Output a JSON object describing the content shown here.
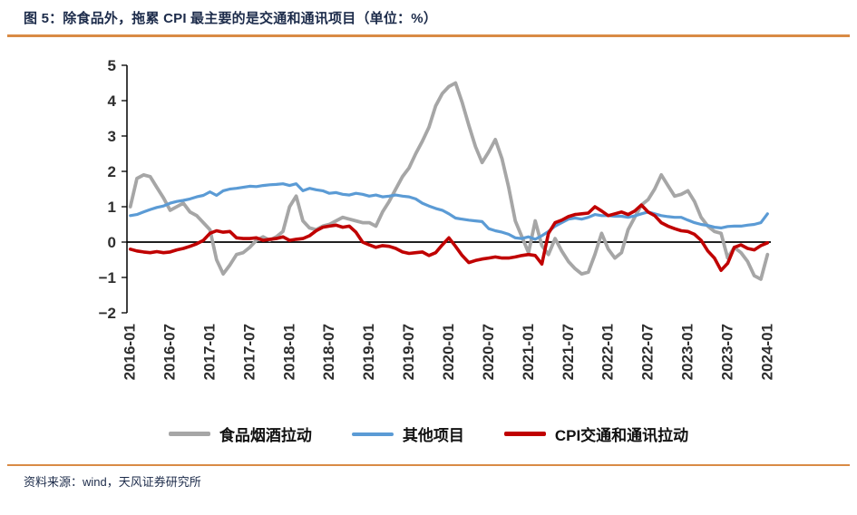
{
  "page": {
    "source": "资料来源：wind，天风证券研究所"
  },
  "colors": {
    "accent_rule": "#d98b45",
    "axis": "#000000",
    "tick_label": "#2e2e2e",
    "title_text": "#1c2b4a"
  },
  "chart_data": {
    "type": "line",
    "title": "图 5：除食品外，拖累 CPI 最主要的是交通和通讯项目（单位：%）",
    "unit": "%",
    "xlabel": "",
    "ylabel": "",
    "ylim": [
      -2,
      5
    ],
    "yticks": [
      5,
      4,
      3,
      2,
      1,
      0,
      -1,
      -2
    ],
    "grid": false,
    "legend_position": "bottom",
    "x_tick_rotation": -90,
    "x_monthly_start": "2016-01",
    "x_monthly_end": "2024-01",
    "x_tick_labels": [
      "2016-01",
      "2016-07",
      "2017-01",
      "2017-07",
      "2018-01",
      "2018-07",
      "2019-01",
      "2019-07",
      "2020-01",
      "2020-07",
      "2021-01",
      "2021-07",
      "2022-01",
      "2022-07",
      "2023-01",
      "2023-07",
      "2024-01"
    ],
    "x_tick_step_months": 6,
    "series": [
      {
        "name": "食品烟酒拉动",
        "color": "#a6a6a6",
        "values": [
          1.0,
          1.8,
          1.9,
          1.85,
          1.55,
          1.25,
          0.9,
          1.0,
          1.1,
          0.85,
          0.75,
          0.55,
          0.35,
          -0.5,
          -0.9,
          -0.65,
          -0.35,
          -0.3,
          -0.15,
          0.05,
          0.15,
          0.05,
          0.15,
          0.3,
          1.0,
          1.3,
          0.6,
          0.4,
          0.35,
          0.45,
          0.5,
          0.6,
          0.7,
          0.65,
          0.6,
          0.55,
          0.55,
          0.45,
          0.85,
          1.15,
          1.5,
          1.85,
          2.1,
          2.5,
          2.85,
          3.25,
          3.85,
          4.2,
          4.4,
          4.5,
          3.95,
          3.3,
          2.7,
          2.25,
          2.55,
          2.9,
          2.35,
          1.55,
          0.6,
          0.15,
          -0.3,
          0.6,
          -0.1,
          -0.35,
          0.1,
          -0.25,
          -0.55,
          -0.75,
          -0.9,
          -0.85,
          -0.35,
          0.25,
          -0.2,
          -0.45,
          -0.3,
          0.35,
          0.7,
          1.05,
          1.2,
          1.5,
          1.9,
          1.6,
          1.3,
          1.35,
          1.45,
          1.15,
          0.7,
          0.45,
          0.3,
          0.25,
          -0.45,
          -0.15,
          -0.3,
          -0.55,
          -0.95,
          -1.05,
          -0.35
        ]
      },
      {
        "name": "其他项目",
        "color": "#5b9bd5",
        "values": [
          0.75,
          0.78,
          0.85,
          0.92,
          0.98,
          1.02,
          1.1,
          1.15,
          1.18,
          1.22,
          1.28,
          1.32,
          1.42,
          1.32,
          1.45,
          1.5,
          1.52,
          1.55,
          1.58,
          1.57,
          1.6,
          1.62,
          1.63,
          1.65,
          1.6,
          1.65,
          1.45,
          1.52,
          1.48,
          1.45,
          1.38,
          1.4,
          1.35,
          1.33,
          1.38,
          1.35,
          1.3,
          1.33,
          1.28,
          1.3,
          1.33,
          1.3,
          1.28,
          1.22,
          1.1,
          1.02,
          0.95,
          0.9,
          0.8,
          0.68,
          0.65,
          0.62,
          0.6,
          0.58,
          0.38,
          0.32,
          0.28,
          0.22,
          0.12,
          0.1,
          0.15,
          0.08,
          0.18,
          0.3,
          0.45,
          0.55,
          0.65,
          0.68,
          0.65,
          0.7,
          0.78,
          0.75,
          0.75,
          0.73,
          0.73,
          0.7,
          0.74,
          0.8,
          0.85,
          0.8,
          0.75,
          0.72,
          0.7,
          0.7,
          0.62,
          0.55,
          0.5,
          0.47,
          0.42,
          0.4,
          0.44,
          0.45,
          0.45,
          0.48,
          0.5,
          0.55,
          0.8
        ]
      },
      {
        "name": "CPI交通和通讯拉动",
        "color": "#c00000",
        "values": [
          -0.2,
          -0.25,
          -0.28,
          -0.3,
          -0.27,
          -0.3,
          -0.28,
          -0.22,
          -0.18,
          -0.12,
          -0.05,
          0.05,
          0.25,
          0.32,
          0.28,
          0.3,
          0.12,
          0.1,
          0.1,
          0.12,
          0.05,
          0.08,
          0.1,
          0.15,
          0.05,
          0.08,
          0.1,
          0.18,
          0.32,
          0.42,
          0.45,
          0.48,
          0.42,
          0.45,
          0.28,
          0.0,
          -0.08,
          -0.15,
          -0.1,
          -0.12,
          -0.18,
          -0.28,
          -0.32,
          -0.3,
          -0.28,
          -0.38,
          -0.3,
          -0.08,
          0.12,
          -0.12,
          -0.38,
          -0.58,
          -0.52,
          -0.48,
          -0.45,
          -0.42,
          -0.45,
          -0.45,
          -0.42,
          -0.38,
          -0.35,
          -0.38,
          -0.62,
          0.25,
          0.55,
          0.62,
          0.72,
          0.78,
          0.8,
          0.82,
          1.0,
          0.88,
          0.75,
          0.8,
          0.85,
          0.78,
          0.88,
          1.05,
          0.85,
          0.75,
          0.55,
          0.45,
          0.38,
          0.32,
          0.3,
          0.22,
          0.05,
          -0.25,
          -0.45,
          -0.8,
          -0.6,
          -0.15,
          -0.08,
          -0.18,
          -0.22,
          -0.1,
          -0.02
        ]
      }
    ]
  }
}
